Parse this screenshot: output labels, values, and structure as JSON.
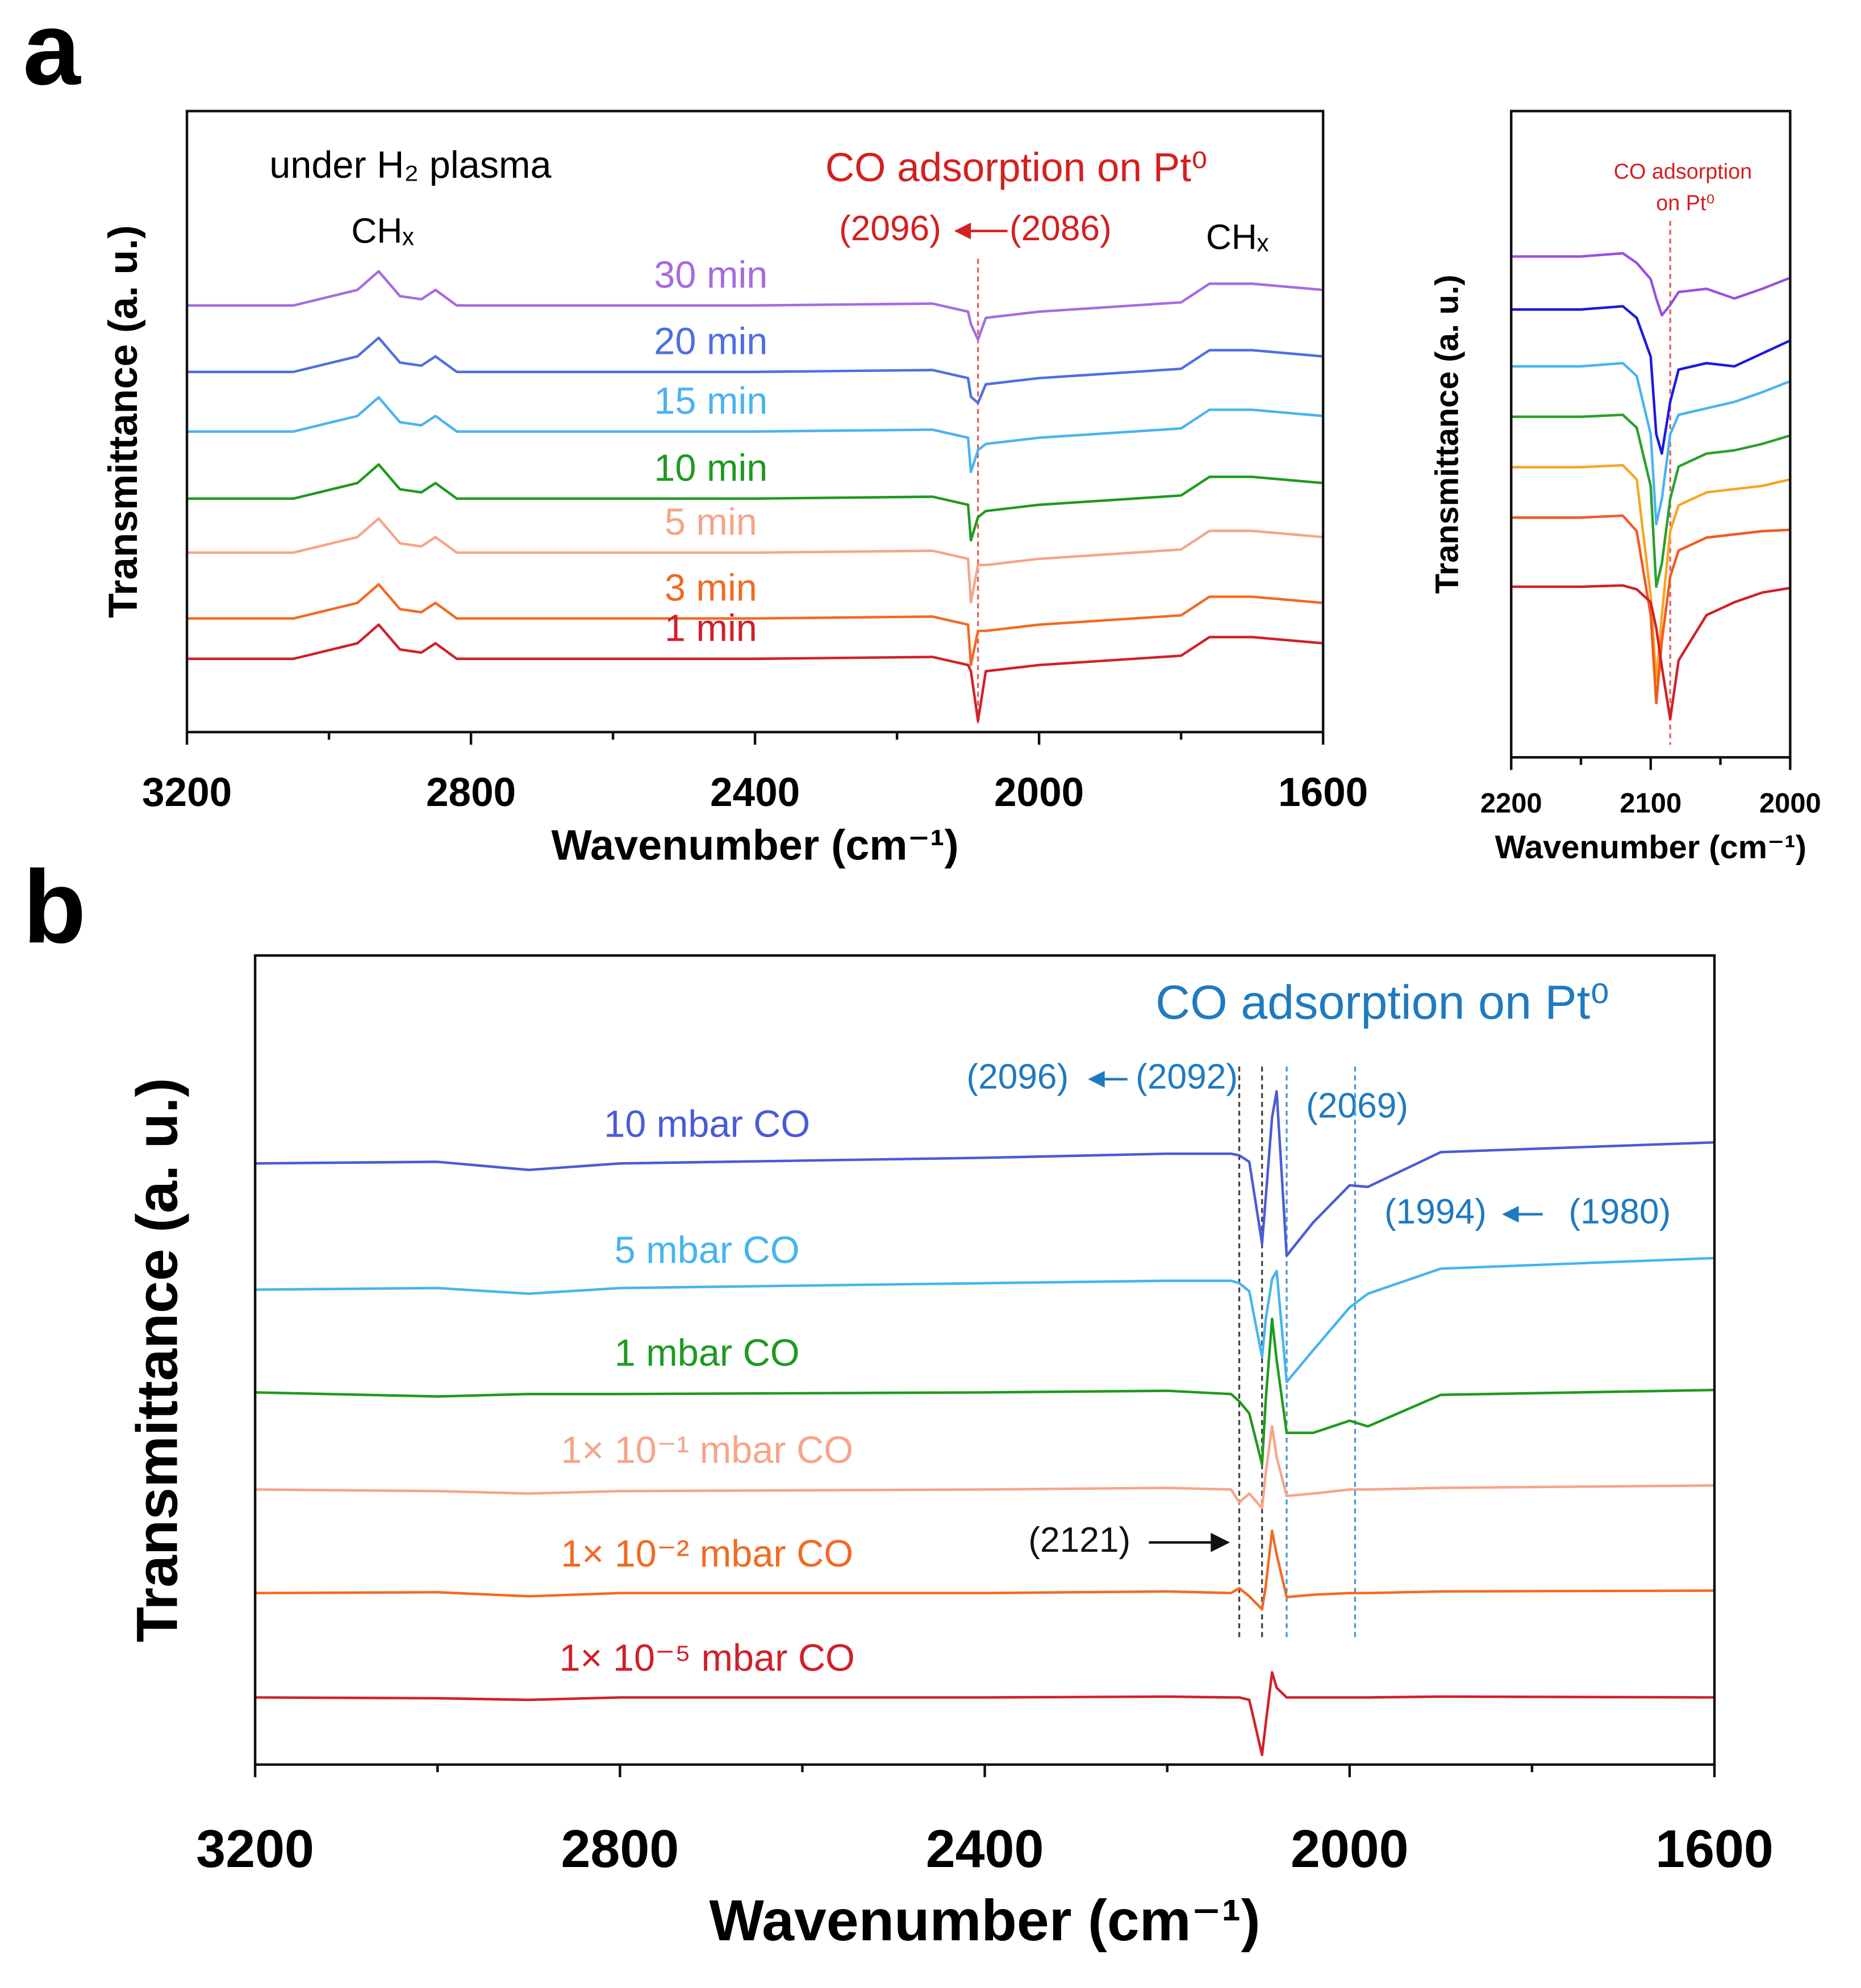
{
  "panels": [
    "a",
    "b"
  ],
  "chart_data": [
    {
      "type": "line",
      "xlabel": "Wavenumber (cm⁻¹)",
      "ylabel": "Transmittance (a. u.)",
      "annotations": [
        "under H₂ plasma",
        "CHₓ",
        "CHₓ",
        "CO adsorption on Pt⁰",
        "(2096)",
        "(2086)"
      ],
      "x": [
        3200,
        3050,
        2960,
        2930,
        2900,
        2870,
        2850,
        2820,
        2400,
        2150,
        2100,
        2096,
        2086,
        2075,
        2000,
        1800,
        1760,
        1700,
        1600
      ],
      "xlim": [
        3200,
        1600
      ],
      "xticks": [
        3200,
        2800,
        2400,
        2000,
        1600
      ],
      "xminorticks": [
        3000,
        2600,
        2200,
        1800
      ],
      "ylim": [
        0,
        100
      ],
      "ref_lines": [
        {
          "value": 2086,
          "color": "#e06060"
        }
      ],
      "series": [
        {
          "name": "30 min",
          "color": "#a66be0",
          "values": [
            68.7,
            68.7,
            71.2,
            74.2,
            70.2,
            69.7,
            71.2,
            68.7,
            68.7,
            69.0,
            67.7,
            65.7,
            63.2,
            66.7,
            67.7,
            69.2,
            72.2,
            72.2,
            71.2
          ]
        },
        {
          "name": "20 min",
          "color": "#4f6fe0",
          "values": [
            58,
            58,
            60.5,
            63.5,
            59.5,
            59,
            60.5,
            58,
            58,
            58.3,
            57,
            54,
            53,
            56,
            57,
            58.5,
            61.5,
            61.5,
            60.5
          ]
        },
        {
          "name": "15 min",
          "color": "#4ab3f0",
          "values": [
            48.4,
            48.4,
            50.9,
            53.9,
            49.9,
            49.4,
            50.9,
            48.4,
            48.4,
            48.7,
            47.4,
            41.9,
            45.4,
            46.4,
            47.4,
            48.9,
            51.9,
            51.9,
            50.9
          ]
        },
        {
          "name": "10 min",
          "color": "#1e9a1e",
          "values": [
            37.6,
            37.6,
            40.1,
            43.1,
            39.1,
            38.6,
            40.1,
            37.6,
            37.6,
            37.9,
            36.6,
            30.9,
            34.6,
            35.6,
            36.6,
            38.1,
            41.1,
            41.1,
            40.1
          ]
        },
        {
          "name": "5 min",
          "color": "#f5a58a",
          "values": [
            28.9,
            28.9,
            31.4,
            34.4,
            30.4,
            29.9,
            31.4,
            28.9,
            28.9,
            29.2,
            27.9,
            20.9,
            26.9,
            26.9,
            27.9,
            29.4,
            32.4,
            32.4,
            31.4
          ]
        },
        {
          "name": "3 min",
          "color": "#f26a22",
          "values": [
            18.3,
            18.3,
            20.8,
            23.8,
            19.8,
            19.3,
            20.8,
            18.3,
            18.3,
            18.6,
            17.3,
            10.8,
            16.3,
            16.3,
            17.3,
            18.8,
            21.8,
            21.8,
            20.8
          ]
        },
        {
          "name": "1 min",
          "color": "#d0202a",
          "values": [
            11.8,
            11.8,
            14.3,
            17.3,
            13.3,
            12.8,
            14.3,
            11.8,
            11.8,
            12.1,
            10.8,
            9.8,
            1.8,
            9.8,
            10.8,
            12.3,
            15.3,
            15.3,
            14.3
          ]
        }
      ]
    },
    {
      "type": "line",
      "xlabel": "Wavenumber (cm⁻¹)",
      "ylabel": "Transmittance (a. u.)",
      "annotations": [
        "CO adsorption",
        "on Pt⁰"
      ],
      "x": [
        2200,
        2150,
        2120,
        2110,
        2100,
        2096,
        2092,
        2086,
        2080,
        2060,
        2040,
        2020,
        2000
      ],
      "xlim": [
        2200,
        2000
      ],
      "xticks": [
        2200,
        2100,
        2000
      ],
      "xminorticks": [
        2150,
        2050
      ],
      "ylim": [
        0,
        100
      ],
      "ref_lines": [
        {
          "value": 2086,
          "color": "#e06060"
        }
      ],
      "series": [
        {
          "color": "#9b4fe0",
          "values": [
            77.5,
            77.5,
            78,
            76.5,
            74,
            71,
            68.4,
            70,
            72,
            72.5,
            71,
            72.5,
            74.2
          ]
        },
        {
          "color": "#1a1ae0",
          "values": [
            69.3,
            69.3,
            69.8,
            68,
            62,
            50,
            47,
            55,
            60,
            61,
            60.5,
            62.5,
            64.5
          ]
        },
        {
          "color": "#4ab3f0",
          "values": [
            60.5,
            60.5,
            61,
            59,
            50,
            36.1,
            40,
            50,
            53,
            54,
            55,
            56.5,
            58.2
          ]
        },
        {
          "color": "#2aa02a",
          "values": [
            52.7,
            52.7,
            53,
            51,
            42,
            26.4,
            30,
            40,
            45,
            47,
            47.5,
            48.5,
            49.8
          ]
        },
        {
          "color": "#f5a623",
          "values": [
            44.9,
            44.9,
            45.2,
            43,
            25,
            11.7,
            22,
            35,
            39,
            41,
            41.5,
            42,
            43
          ]
        },
        {
          "color": "#f25a22",
          "values": [
            37.1,
            37.1,
            37.4,
            35,
            22,
            8.4,
            18,
            28,
            32,
            34,
            34.5,
            35,
            35.2
          ]
        },
        {
          "color": "#d0202a",
          "values": [
            26.4,
            26.4,
            26.6,
            26,
            24,
            20,
            14,
            5.9,
            15,
            22,
            24,
            25.5,
            26.2
          ]
        }
      ]
    },
    {
      "type": "line",
      "xlabel": "Wavenumber (cm⁻¹)",
      "ylabel": "Transmittance (a. u.)",
      "annotations": [
        "CO adsorption on Pt⁰",
        "(2096)",
        "(2092)",
        "(2069)",
        "(1994)",
        "(1980)",
        "(2121)"
      ],
      "x": [
        3200,
        3000,
        2900,
        2800,
        2400,
        2200,
        2130,
        2121,
        2110,
        2096,
        2092,
        2085,
        2080,
        2069,
        2040,
        2000,
        1980,
        1900,
        1600
      ],
      "xlim": [
        3200,
        1600
      ],
      "xticks": [
        3200,
        2800,
        2400,
        2000,
        1600
      ],
      "xminorticks": [
        3000,
        2600,
        2200,
        1800
      ],
      "ylim": [
        0,
        100
      ],
      "ref_lines": [
        {
          "value": 2121,
          "color": "#444"
        },
        {
          "value": 2096,
          "color": "#444"
        },
        {
          "value": 2069,
          "color": "#4a9ad0"
        },
        {
          "value": 1994,
          "color": "#4a9ad0"
        }
      ],
      "series": [
        {
          "name": "10 mbar CO",
          "color": "#4a5bd6",
          "values": [
            74.3,
            74.5,
            73.5,
            74.3,
            75.0,
            75.5,
            75.5,
            75.3,
            74.5,
            64.4,
            70,
            80,
            83.2,
            62.9,
            67,
            71.6,
            71.4,
            75.7,
            76.9
          ]
        },
        {
          "name": "5 mbar CO",
          "color": "#46b4ef",
          "values": [
            58.7,
            58.9,
            58.2,
            58.9,
            59.5,
            59.8,
            59.8,
            59.5,
            58.5,
            50.4,
            55,
            60,
            61,
            47.3,
            51.2,
            56.5,
            58.2,
            61.3,
            62.6
          ]
        },
        {
          "name": "1 mbar CO",
          "color": "#1e9a1e",
          "values": [
            46.0,
            45.5,
            45.8,
            45.8,
            46.0,
            46.2,
            45.8,
            44.9,
            43.4,
            37.1,
            45,
            55.1,
            50,
            41.0,
            41.0,
            42.5,
            41.8,
            45.7,
            46.3
          ]
        },
        {
          "name": "1× 10⁻¹  mbar CO",
          "color": "#f5a58a",
          "values": [
            34.0,
            33.8,
            33.5,
            33.8,
            34.0,
            34.2,
            34.0,
            32.4,
            33.5,
            31.7,
            36,
            41.8,
            38,
            33.2,
            33.5,
            34,
            34,
            34.2,
            34.5
          ]
        },
        {
          "name": "1× 10⁻²  mbar CO",
          "color": "#f26a22",
          "values": [
            21.2,
            21.3,
            20.8,
            21.2,
            21.2,
            21.4,
            21.2,
            21.8,
            20.8,
            19.2,
            22,
            28.9,
            26,
            20.7,
            21.0,
            21.2,
            21.2,
            21.4,
            21.5
          ]
        },
        {
          "name": "1× 10⁻⁵  mbar CO",
          "color": "#d0202a",
          "values": [
            8.3,
            8.2,
            8.0,
            8.3,
            8.3,
            8.4,
            8.3,
            8.3,
            8.0,
            1.2,
            5,
            11.4,
            9.5,
            8.3,
            8.3,
            8.3,
            8.3,
            8.4,
            8.3
          ]
        }
      ]
    }
  ]
}
